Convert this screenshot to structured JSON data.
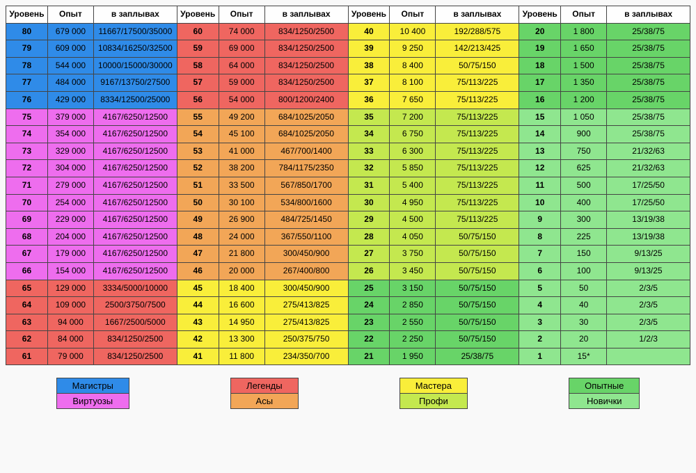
{
  "columns": [
    "Уровень",
    "Опыт",
    "в заплывах"
  ],
  "col_widths_fr": [
    1,
    1.1,
    2
  ],
  "header_bg": "#fefefe",
  "header_fontweight": "bold",
  "border_color": "#444444",
  "palette": {
    "blue": "#2f8be8",
    "magenta": "#ee6dee",
    "red": "#ef6660",
    "orange": "#f2a657",
    "yellow": "#f9ee3a",
    "yellowgreen": "#c4e84f",
    "green": "#68d468",
    "lightgreen": "#8fe68f"
  },
  "groups": [
    {
      "rows": [
        {
          "level": 80,
          "exp": "679 000",
          "sw": "11667/17500/35000",
          "c": "blue"
        },
        {
          "level": 79,
          "exp": "609 000",
          "sw": "10834/16250/32500",
          "c": "blue"
        },
        {
          "level": 78,
          "exp": "544 000",
          "sw": "10000/15000/30000",
          "c": "blue"
        },
        {
          "level": 77,
          "exp": "484 000",
          "sw": "9167/13750/27500",
          "c": "blue"
        },
        {
          "level": 76,
          "exp": "429 000",
          "sw": "8334/12500/25000",
          "c": "blue"
        },
        {
          "level": 75,
          "exp": "379 000",
          "sw": "4167/6250/12500",
          "c": "magenta"
        },
        {
          "level": 74,
          "exp": "354 000",
          "sw": "4167/6250/12500",
          "c": "magenta"
        },
        {
          "level": 73,
          "exp": "329 000",
          "sw": "4167/6250/12500",
          "c": "magenta"
        },
        {
          "level": 72,
          "exp": "304 000",
          "sw": "4167/6250/12500",
          "c": "magenta"
        },
        {
          "level": 71,
          "exp": "279 000",
          "sw": "4167/6250/12500",
          "c": "magenta"
        },
        {
          "level": 70,
          "exp": "254 000",
          "sw": "4167/6250/12500",
          "c": "magenta"
        },
        {
          "level": 69,
          "exp": "229 000",
          "sw": "4167/6250/12500",
          "c": "magenta"
        },
        {
          "level": 68,
          "exp": "204 000",
          "sw": "4167/6250/12500",
          "c": "magenta"
        },
        {
          "level": 67,
          "exp": "179 000",
          "sw": "4167/6250/12500",
          "c": "magenta"
        },
        {
          "level": 66,
          "exp": "154 000",
          "sw": "4167/6250/12500",
          "c": "magenta"
        },
        {
          "level": 65,
          "exp": "129 000",
          "sw": "3334/5000/10000",
          "c": "red"
        },
        {
          "level": 64,
          "exp": "109 000",
          "sw": "2500/3750/7500",
          "c": "red"
        },
        {
          "level": 63,
          "exp": "94 000",
          "sw": "1667/2500/5000",
          "c": "red"
        },
        {
          "level": 62,
          "exp": "84 000",
          "sw": "834/1250/2500",
          "c": "red"
        },
        {
          "level": 61,
          "exp": "79 000",
          "sw": "834/1250/2500",
          "c": "red"
        }
      ]
    },
    {
      "rows": [
        {
          "level": 60,
          "exp": "74 000",
          "sw": "834/1250/2500",
          "c": "red"
        },
        {
          "level": 59,
          "exp": "69 000",
          "sw": "834/1250/2500",
          "c": "red"
        },
        {
          "level": 58,
          "exp": "64 000",
          "sw": "834/1250/2500",
          "c": "red"
        },
        {
          "level": 57,
          "exp": "59 000",
          "sw": "834/1250/2500",
          "c": "red"
        },
        {
          "level": 56,
          "exp": "54 000",
          "sw": "800/1200/2400",
          "c": "red"
        },
        {
          "level": 55,
          "exp": "49 200",
          "sw": "684/1025/2050",
          "c": "orange"
        },
        {
          "level": 54,
          "exp": "45 100",
          "sw": "684/1025/2050",
          "c": "orange"
        },
        {
          "level": 53,
          "exp": "41 000",
          "sw": "467/700/1400",
          "c": "orange"
        },
        {
          "level": 52,
          "exp": "38 200",
          "sw": "784/1175/2350",
          "c": "orange"
        },
        {
          "level": 51,
          "exp": "33 500",
          "sw": "567/850/1700",
          "c": "orange"
        },
        {
          "level": 50,
          "exp": "30 100",
          "sw": "534/800/1600",
          "c": "orange"
        },
        {
          "level": 49,
          "exp": "26 900",
          "sw": "484/725/1450",
          "c": "orange"
        },
        {
          "level": 48,
          "exp": "24 000",
          "sw": "367/550/1100",
          "c": "orange"
        },
        {
          "level": 47,
          "exp": "21 800",
          "sw": "300/450/900",
          "c": "orange"
        },
        {
          "level": 46,
          "exp": "20 000",
          "sw": "267/400/800",
          "c": "orange"
        },
        {
          "level": 45,
          "exp": "18 400",
          "sw": "300/450/900",
          "c": "yellow"
        },
        {
          "level": 44,
          "exp": "16 600",
          "sw": "275/413/825",
          "c": "yellow"
        },
        {
          "level": 43,
          "exp": "14 950",
          "sw": "275/413/825",
          "c": "yellow"
        },
        {
          "level": 42,
          "exp": "13 300",
          "sw": "250/375/750",
          "c": "yellow"
        },
        {
          "level": 41,
          "exp": "11 800",
          "sw": "234/350/700",
          "c": "yellow"
        }
      ]
    },
    {
      "rows": [
        {
          "level": 40,
          "exp": "10 400",
          "sw": "192/288/575",
          "c": "yellow"
        },
        {
          "level": 39,
          "exp": "9 250",
          "sw": "142/213/425",
          "c": "yellow"
        },
        {
          "level": 38,
          "exp": "8 400",
          "sw": "50/75/150",
          "c": "yellow"
        },
        {
          "level": 37,
          "exp": "8 100",
          "sw": "75/113/225",
          "c": "yellow"
        },
        {
          "level": 36,
          "exp": "7 650",
          "sw": "75/113/225",
          "c": "yellow"
        },
        {
          "level": 35,
          "exp": "7 200",
          "sw": "75/113/225",
          "c": "yellowgreen"
        },
        {
          "level": 34,
          "exp": "6 750",
          "sw": "75/113/225",
          "c": "yellowgreen"
        },
        {
          "level": 33,
          "exp": "6 300",
          "sw": "75/113/225",
          "c": "yellowgreen"
        },
        {
          "level": 32,
          "exp": "5 850",
          "sw": "75/113/225",
          "c": "yellowgreen"
        },
        {
          "level": 31,
          "exp": "5 400",
          "sw": "75/113/225",
          "c": "yellowgreen"
        },
        {
          "level": 30,
          "exp": "4 950",
          "sw": "75/113/225",
          "c": "yellowgreen"
        },
        {
          "level": 29,
          "exp": "4 500",
          "sw": "75/113/225",
          "c": "yellowgreen"
        },
        {
          "level": 28,
          "exp": "4 050",
          "sw": "50/75/150",
          "c": "yellowgreen"
        },
        {
          "level": 27,
          "exp": "3 750",
          "sw": "50/75/150",
          "c": "yellowgreen"
        },
        {
          "level": 26,
          "exp": "3 450",
          "sw": "50/75/150",
          "c": "yellowgreen"
        },
        {
          "level": 25,
          "exp": "3 150",
          "sw": "50/75/150",
          "c": "green"
        },
        {
          "level": 24,
          "exp": "2 850",
          "sw": "50/75/150",
          "c": "green"
        },
        {
          "level": 23,
          "exp": "2 550",
          "sw": "50/75/150",
          "c": "green"
        },
        {
          "level": 22,
          "exp": "2 250",
          "sw": "50/75/150",
          "c": "green"
        },
        {
          "level": 21,
          "exp": "1 950",
          "sw": "25/38/75",
          "c": "green"
        }
      ]
    },
    {
      "rows": [
        {
          "level": 20,
          "exp": "1 800",
          "sw": "25/38/75",
          "c": "green"
        },
        {
          "level": 19,
          "exp": "1 650",
          "sw": "25/38/75",
          "c": "green"
        },
        {
          "level": 18,
          "exp": "1 500",
          "sw": "25/38/75",
          "c": "green"
        },
        {
          "level": 17,
          "exp": "1 350",
          "sw": "25/38/75",
          "c": "green"
        },
        {
          "level": 16,
          "exp": "1 200",
          "sw": "25/38/75",
          "c": "green"
        },
        {
          "level": 15,
          "exp": "1 050",
          "sw": "25/38/75",
          "c": "lightgreen"
        },
        {
          "level": 14,
          "exp": "900",
          "sw": "25/38/75",
          "c": "lightgreen"
        },
        {
          "level": 13,
          "exp": "750",
          "sw": "21/32/63",
          "c": "lightgreen"
        },
        {
          "level": 12,
          "exp": "625",
          "sw": "21/32/63",
          "c": "lightgreen"
        },
        {
          "level": 11,
          "exp": "500",
          "sw": "17/25/50",
          "c": "lightgreen"
        },
        {
          "level": 10,
          "exp": "400",
          "sw": "17/25/50",
          "c": "lightgreen"
        },
        {
          "level": 9,
          "exp": "300",
          "sw": "13/19/38",
          "c": "lightgreen"
        },
        {
          "level": 8,
          "exp": "225",
          "sw": "13/19/38",
          "c": "lightgreen"
        },
        {
          "level": 7,
          "exp": "150",
          "sw": "9/13/25",
          "c": "lightgreen"
        },
        {
          "level": 6,
          "exp": "100",
          "sw": "9/13/25",
          "c": "lightgreen"
        },
        {
          "level": 5,
          "exp": "50",
          "sw": "2/3/5",
          "c": "lightgreen"
        },
        {
          "level": 4,
          "exp": "40",
          "sw": "2/3/5",
          "c": "lightgreen"
        },
        {
          "level": 3,
          "exp": "30",
          "sw": "2/3/5",
          "c": "lightgreen"
        },
        {
          "level": 2,
          "exp": "20",
          "sw": "1/2/3",
          "c": "lightgreen"
        },
        {
          "level": 1,
          "exp": "15*",
          "sw": "",
          "c": "lightgreen"
        }
      ]
    }
  ],
  "legend": [
    [
      {
        "label": "Магистры",
        "c": "blue"
      },
      {
        "label": "Виртуозы",
        "c": "magenta"
      }
    ],
    [
      {
        "label": "Легенды",
        "c": "red"
      },
      {
        "label": "Асы",
        "c": "orange"
      }
    ],
    [
      {
        "label": "Мастера",
        "c": "yellow"
      },
      {
        "label": "Профи",
        "c": "yellowgreen"
      }
    ],
    [
      {
        "label": "Опытные",
        "c": "green"
      },
      {
        "label": "Новички",
        "c": "lightgreen"
      }
    ]
  ]
}
